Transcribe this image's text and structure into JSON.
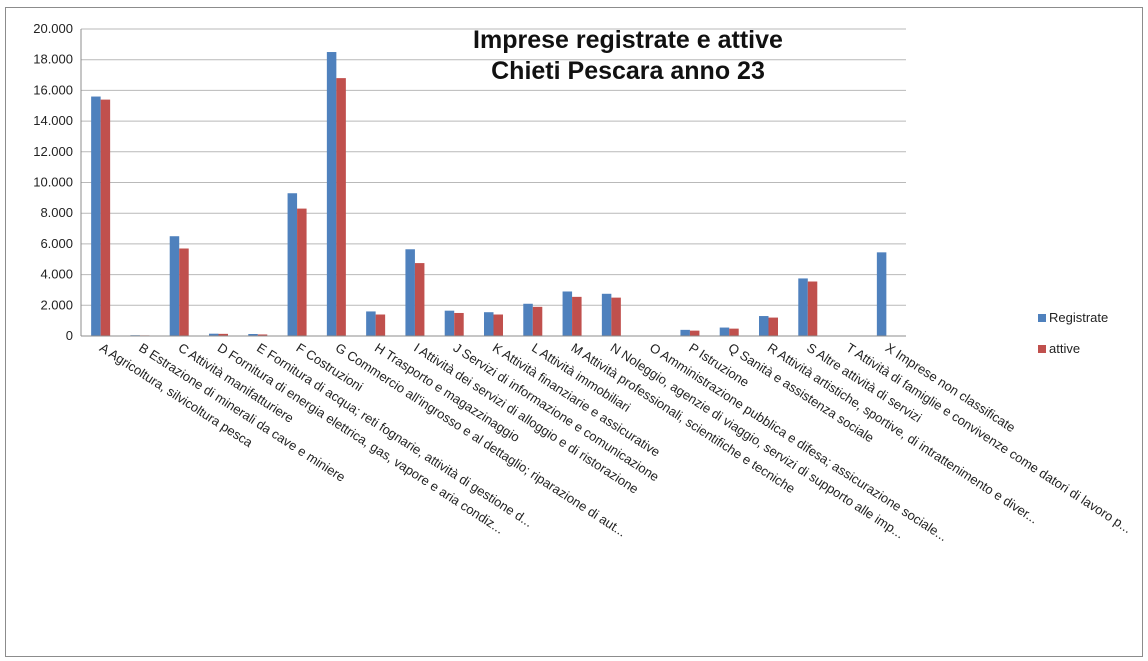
{
  "chart_data": {
    "type": "bar",
    "title": "Imprese registrate e attive\nChieti Pescara anno 23",
    "xlabel": "",
    "ylabel": "",
    "ylim": [
      0,
      20000
    ],
    "yticks": [
      "0",
      "2.000",
      "4.000",
      "6.000",
      "8.000",
      "10.000",
      "12.000",
      "14.000",
      "16.000",
      "18.000",
      "20.000"
    ],
    "grid": true,
    "legend_position": "right",
    "categories": [
      "A Agricoltura, silvicoltura pesca",
      "B Estrazione di minerali da cave e miniere",
      "C Attività manifatturiere",
      "D Fornitura di energia elettrica, gas, vapore e aria condiz...",
      "E Fornitura di acqua; reti fognarie, attività di gestione d...",
      "F Costruzioni",
      "G Commercio all'ingrosso e al dettaglio; riparazione di aut...",
      "H Trasporto e magazzinaggio",
      "I Attività dei servizi di alloggio e di ristorazione",
      "J Servizi di informazione e comunicazione",
      "K Attività finanziarie e assicurative",
      "L Attività immobiliari",
      "M Attività professionali, scientifiche e tecniche",
      "N Noleggio, agenzie di viaggio, servizi di supporto alle imp...",
      "O Amministrazione pubblica e difesa; assicurazione sociale...",
      "P Istruzione",
      "Q Sanità e assistenza sociale",
      "R Attività artistiche, sportive, di intrattenimento e diver...",
      "S Altre attività di servizi",
      "T Attività di famiglie e convivenze come datori di lavoro p...",
      "X Imprese non classificate"
    ],
    "series": [
      {
        "name": "Registrate",
        "color": "#4f81bd",
        "values": [
          15600,
          50,
          6500,
          150,
          130,
          9300,
          18500,
          1600,
          5650,
          1650,
          1550,
          2100,
          2900,
          2750,
          0,
          400,
          550,
          1300,
          3750,
          30,
          5450
        ]
      },
      {
        "name": "attive",
        "color": "#c0504d",
        "values": [
          15400,
          40,
          5700,
          140,
          100,
          8300,
          16800,
          1400,
          4750,
          1500,
          1400,
          1900,
          2550,
          2500,
          0,
          350,
          480,
          1200,
          3550,
          20,
          0
        ]
      }
    ]
  }
}
